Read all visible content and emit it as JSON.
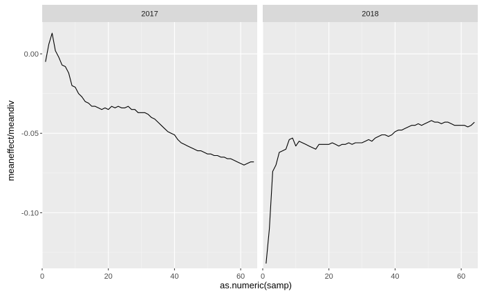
{
  "chart_data": {
    "type": "line",
    "facet_by": "year",
    "xlabel": "as.numeric(samp)",
    "ylabel": "meaneffect/meandiv",
    "xlim": [
      0,
      65
    ],
    "ylim": [
      -0.135,
      0.02
    ],
    "x_ticks": [
      0,
      20,
      40,
      60
    ],
    "y_ticks": [
      0.0,
      -0.05,
      -0.1
    ],
    "y_tick_labels": [
      "0.00",
      "-0.05",
      "-0.10"
    ],
    "grid": true,
    "line_color": "#000000",
    "panels": [
      {
        "strip": "2017",
        "x": [
          1,
          2,
          3,
          4,
          5,
          6,
          7,
          8,
          9,
          10,
          11,
          12,
          13,
          14,
          15,
          16,
          17,
          18,
          19,
          20,
          21,
          22,
          23,
          24,
          25,
          26,
          27,
          28,
          29,
          30,
          31,
          32,
          33,
          34,
          35,
          36,
          37,
          38,
          39,
          40,
          41,
          42,
          43,
          44,
          45,
          46,
          47,
          48,
          49,
          50,
          51,
          52,
          53,
          54,
          55,
          56,
          57,
          58,
          59,
          60,
          61,
          62,
          63,
          64
        ],
        "y": [
          -0.005,
          0.006,
          0.013,
          0.002,
          -0.002,
          -0.007,
          -0.008,
          -0.012,
          -0.02,
          -0.021,
          -0.025,
          -0.027,
          -0.03,
          -0.031,
          -0.033,
          -0.033,
          -0.034,
          -0.035,
          -0.034,
          -0.035,
          -0.033,
          -0.034,
          -0.033,
          -0.034,
          -0.034,
          -0.033,
          -0.035,
          -0.035,
          -0.037,
          -0.037,
          -0.037,
          -0.038,
          -0.04,
          -0.041,
          -0.043,
          -0.045,
          -0.047,
          -0.049,
          -0.05,
          -0.051,
          -0.054,
          -0.056,
          -0.057,
          -0.058,
          -0.059,
          -0.06,
          -0.061,
          -0.061,
          -0.062,
          -0.063,
          -0.063,
          -0.064,
          -0.064,
          -0.065,
          -0.065,
          -0.066,
          -0.066,
          -0.067,
          -0.068,
          -0.069,
          -0.07,
          -0.069,
          -0.068,
          -0.068
        ]
      },
      {
        "strip": "2018",
        "x": [
          1,
          2,
          3,
          4,
          5,
          6,
          7,
          8,
          9,
          10,
          11,
          12,
          13,
          14,
          15,
          16,
          17,
          18,
          19,
          20,
          21,
          22,
          23,
          24,
          25,
          26,
          27,
          28,
          29,
          30,
          31,
          32,
          33,
          34,
          35,
          36,
          37,
          38,
          39,
          40,
          41,
          42,
          43,
          44,
          45,
          46,
          47,
          48,
          49,
          50,
          51,
          52,
          53,
          54,
          55,
          56,
          57,
          58,
          59,
          60,
          61,
          62,
          63,
          64
        ],
        "y": [
          -0.132,
          -0.11,
          -0.074,
          -0.07,
          -0.062,
          -0.061,
          -0.06,
          -0.054,
          -0.053,
          -0.058,
          -0.055,
          -0.056,
          -0.057,
          -0.058,
          -0.059,
          -0.06,
          -0.057,
          -0.057,
          -0.057,
          -0.057,
          -0.056,
          -0.057,
          -0.058,
          -0.057,
          -0.057,
          -0.056,
          -0.057,
          -0.056,
          -0.056,
          -0.056,
          -0.055,
          -0.054,
          -0.055,
          -0.053,
          -0.052,
          -0.051,
          -0.051,
          -0.052,
          -0.051,
          -0.049,
          -0.048,
          -0.048,
          -0.047,
          -0.046,
          -0.045,
          -0.045,
          -0.044,
          -0.045,
          -0.044,
          -0.043,
          -0.042,
          -0.043,
          -0.043,
          -0.044,
          -0.043,
          -0.043,
          -0.044,
          -0.045,
          -0.045,
          -0.045,
          -0.045,
          -0.046,
          -0.045,
          -0.043
        ]
      }
    ]
  }
}
